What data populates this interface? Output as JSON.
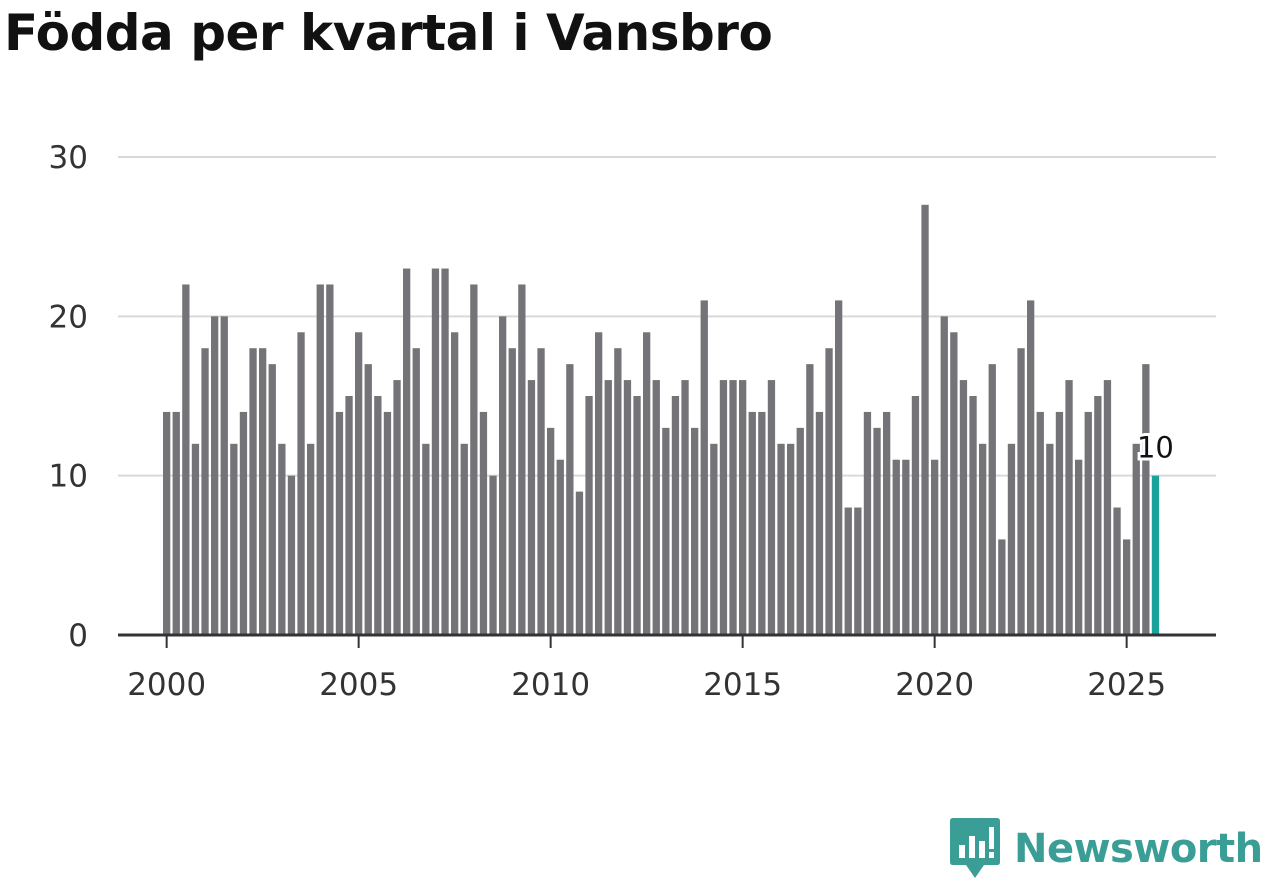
{
  "title": "Födda per kvartal i Vansbro",
  "brand": "Newsworthy",
  "colors": {
    "bar": "#747478",
    "highlight": "#1aa39a",
    "grid": "#d9d9d9",
    "axis": "#333333",
    "brand": "#3a9e96"
  },
  "chart_data": {
    "type": "bar",
    "title": "Födda per kvartal i Vansbro",
    "xlabel": "",
    "ylabel": "",
    "x_start_year": 2000,
    "quarters_per_year": 4,
    "values": [
      14,
      14,
      22,
      12,
      18,
      20,
      20,
      12,
      14,
      18,
      18,
      17,
      12,
      10,
      19,
      12,
      22,
      22,
      14,
      15,
      19,
      17,
      15,
      14,
      16,
      23,
      18,
      12,
      23,
      23,
      19,
      12,
      22,
      14,
      10,
      20,
      18,
      22,
      16,
      18,
      13,
      11,
      17,
      9,
      15,
      19,
      16,
      18,
      16,
      15,
      19,
      16,
      13,
      15,
      16,
      13,
      21,
      12,
      16,
      16,
      16,
      14,
      14,
      16,
      12,
      12,
      13,
      17,
      14,
      18,
      21,
      8,
      8,
      14,
      13,
      14,
      11,
      11,
      15,
      27,
      11,
      20,
      19,
      16,
      15,
      12,
      17,
      6,
      12,
      18,
      21,
      14,
      12,
      14,
      16,
      11,
      14,
      15,
      16,
      8,
      6,
      12,
      17,
      10
    ],
    "highlight_last": true,
    "data_label": "10",
    "x_ticks": [
      "2000",
      "2005",
      "2010",
      "2015",
      "2020",
      "2025"
    ],
    "y_ticks": [
      "0",
      "10",
      "20",
      "30"
    ],
    "ylim": [
      0,
      30
    ],
    "grid": true
  }
}
